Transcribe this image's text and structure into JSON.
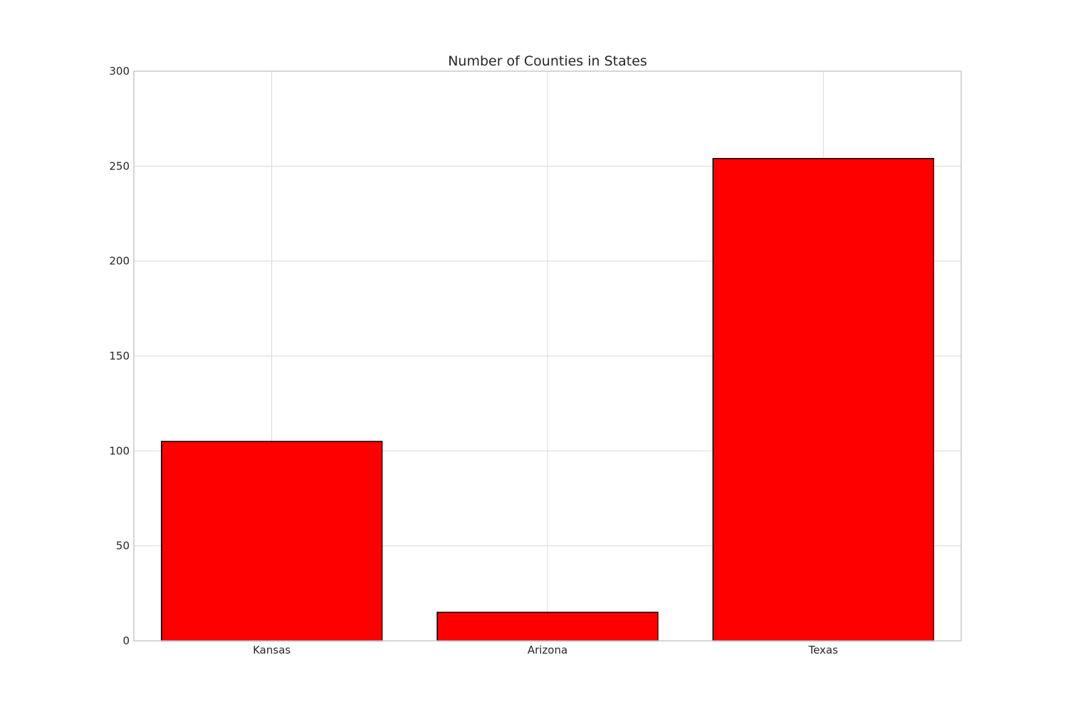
{
  "chart_data": {
    "type": "bar",
    "title": "Number of Counties in States",
    "xlabel": "",
    "ylabel": "",
    "categories": [
      "Kansas",
      "Arizona",
      "Texas"
    ],
    "values": [
      105,
      15,
      254
    ],
    "ylim": [
      0,
      300
    ],
    "yticks": [
      0,
      50,
      100,
      150,
      200,
      250,
      300
    ],
    "grid": true,
    "bar_color": "#ff0000",
    "bar_edge_color": "#000000"
  }
}
